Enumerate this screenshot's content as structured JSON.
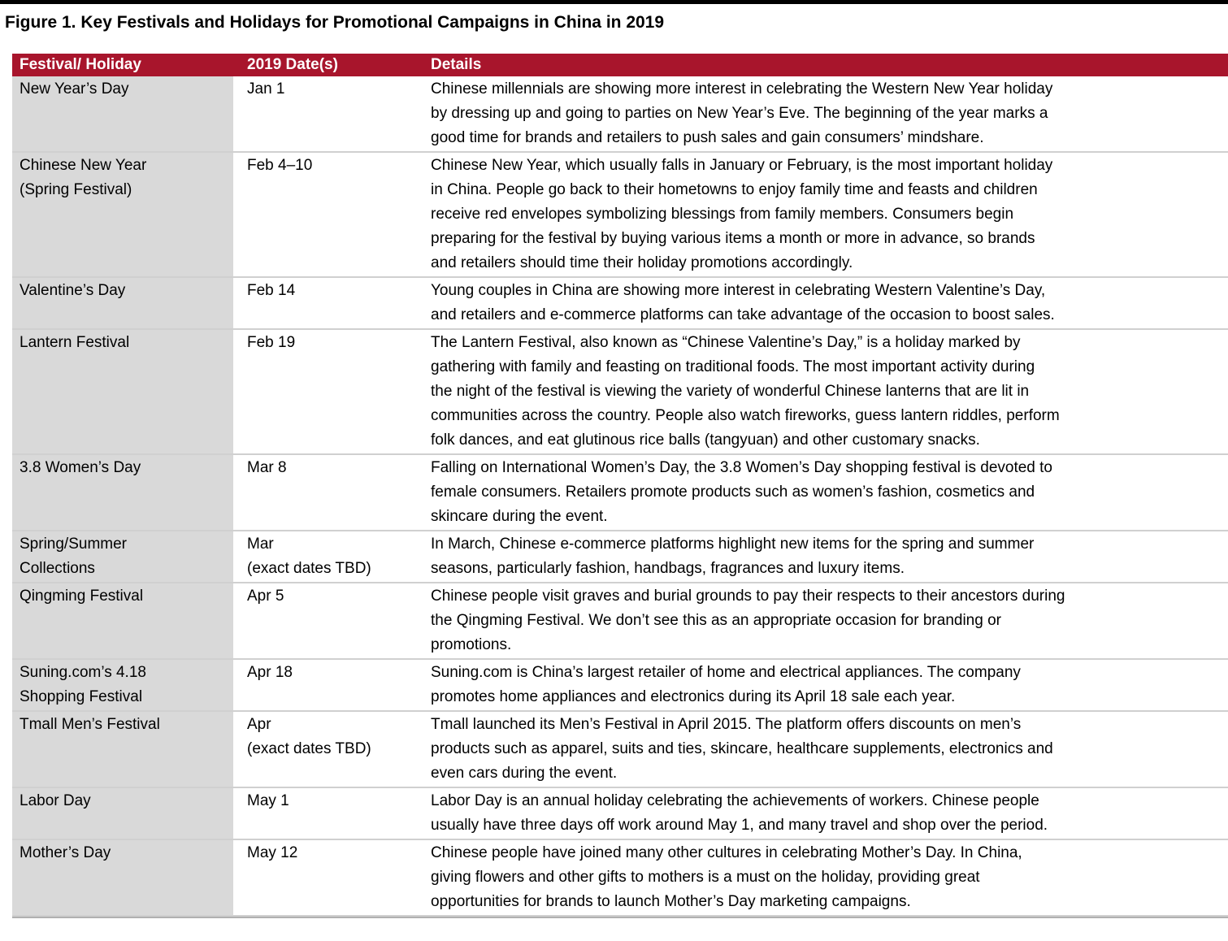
{
  "title": "Figure 1. Key Festivals and Holidays for Promotional Campaigns in China in 2019",
  "table": {
    "header": [
      "Festival/ Holiday",
      "2019 Date(s)",
      "Details"
    ],
    "rows": [
      [
        [
          "New Year’s Day"
        ],
        [
          "Jan 1"
        ],
        [
          "Chinese millennials are showing more interest in celebrating the Western New Year holiday",
          "by dressing up and going to parties on New Year’s Eve. The beginning of the year marks a",
          "good time for brands and retailers to push sales and gain consumers’ mindshare."
        ]
      ],
      [
        [
          "Chinese New Year",
          "(Spring Festival)"
        ],
        [
          "Feb 4–10"
        ],
        [
          "Chinese New Year, which usually falls in January or February, is the most important holiday",
          "in China. People go back to their hometowns to enjoy family time and feasts and children",
          "receive red envelopes symbolizing blessings from family members. Consumers begin",
          "preparing for the festival by buying various items a month or more in advance, so brands",
          "and retailers should time their holiday promotions accordingly."
        ]
      ],
      [
        [
          "Valentine’s Day"
        ],
        [
          "Feb 14"
        ],
        [
          "Young couples in China are showing more interest in celebrating Western Valentine’s Day,",
          "and retailers and e-commerce platforms can take advantage of the occasion to boost sales."
        ]
      ],
      [
        [
          "Lantern Festival"
        ],
        [
          "Feb 19"
        ],
        [
          "The Lantern Festival, also known as “Chinese Valentine’s Day,” is a holiday marked by",
          "gathering with family and feasting on traditional foods. The most important activity during",
          "the night of the festival is viewing the variety of wonderful Chinese lanterns that are lit in",
          "communities across the country. People also watch fireworks, guess lantern riddles, perform",
          "folk dances, and eat glutinous rice balls (tangyuan) and other customary snacks."
        ]
      ],
      [
        [
          "3.8 Women’s Day"
        ],
        [
          "Mar 8"
        ],
        [
          "Falling on International Women’s Day, the 3.8 Women’s Day shopping festival is devoted to",
          "female consumers. Retailers promote products such as women’s fashion, cosmetics and",
          "skincare during the event."
        ]
      ],
      [
        [
          "Spring/Summer",
          "Collections"
        ],
        [
          "Mar",
          "(exact dates TBD)"
        ],
        [
          "In March, Chinese e-commerce platforms highlight new items for the spring and summer",
          "seasons, particularly fashion, handbags, fragrances and luxury items."
        ]
      ],
      [
        [
          "Qingming Festival"
        ],
        [
          "Apr 5"
        ],
        [
          "Chinese people visit graves and burial grounds to pay their respects to their ancestors during",
          "the Qingming Festival. We don’t see this as an appropriate occasion for branding or",
          "promotions."
        ]
      ],
      [
        [
          "Suning.com’s 4.18",
          "Shopping Festival"
        ],
        [
          "Apr 18"
        ],
        [
          "Suning.com is China’s largest retailer of home and electrical appliances. The company",
          "promotes home appliances and electronics during its April 18 sale each year."
        ]
      ],
      [
        [
          "Tmall Men’s Festival"
        ],
        [
          "Apr",
          "(exact dates TBD)"
        ],
        [
          "Tmall launched its Men’s Festival in April 2015. The platform offers discounts on men’s",
          "products such as apparel, suits and ties, skincare, healthcare supplements, electronics and",
          "even cars during the event."
        ]
      ],
      [
        [
          "Labor Day"
        ],
        [
          "May 1"
        ],
        [
          "Labor Day is an annual holiday celebrating the achievements of workers. Chinese people",
          "usually have three days off work around May 1, and many travel and shop over the period."
        ]
      ],
      [
        [
          "Mother’s Day"
        ],
        [
          "May 12"
        ],
        [
          "Chinese people have joined many other cultures in celebrating Mother’s Day. In China,",
          "giving flowers and other gifts to mothers is a must on the holiday, providing great",
          "opportunities for brands to launch Mother’s Day marketing campaigns."
        ]
      ]
    ]
  }
}
